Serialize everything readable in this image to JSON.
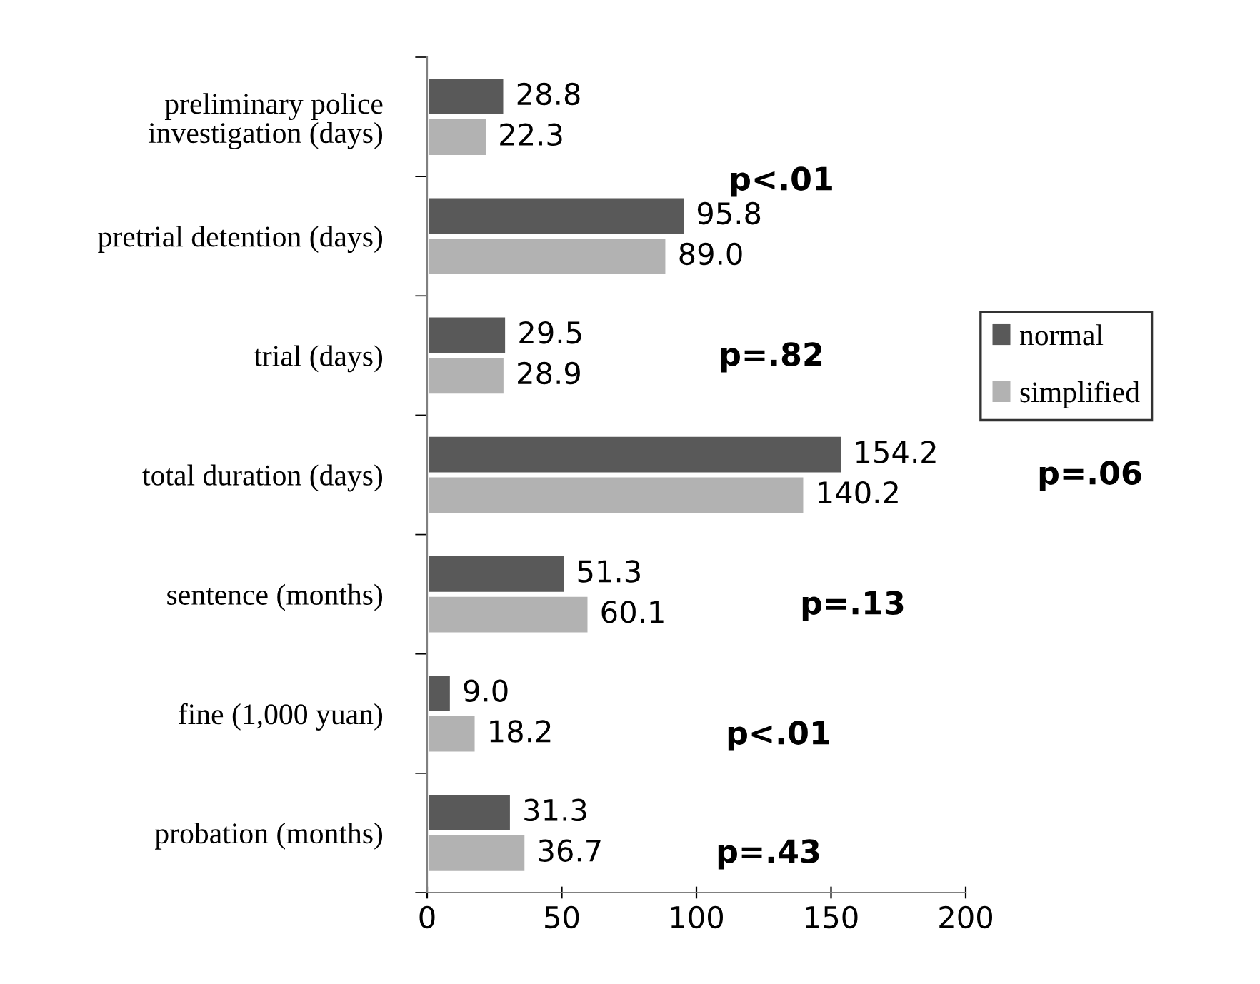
{
  "chart_data": {
    "type": "bar",
    "orientation": "horizontal",
    "categories": [
      "preliminary police\ninvestigation (days)",
      "pretrial detention (days)",
      "trial (days)",
      "total duration (days)",
      "sentence (months)",
      "fine (1,000 yuan)",
      "probation (months)"
    ],
    "series": [
      {
        "name": "normal",
        "color": "#595959",
        "values": [
          28.8,
          95.8,
          29.5,
          154.2,
          51.3,
          9.0,
          31.3
        ],
        "value_labels": [
          "28.8",
          "95.8",
          "29.5",
          "154.2",
          "51.3",
          "9.0",
          "31.3"
        ]
      },
      {
        "name": "simplified",
        "color": "#b2b2b2",
        "values": [
          22.3,
          89.0,
          28.9,
          140.2,
          60.1,
          18.2,
          36.7
        ],
        "value_labels": [
          "22.3",
          "89.0",
          "28.9",
          "140.2",
          "60.1",
          "18.2",
          "36.7"
        ]
      }
    ],
    "xlim": [
      0,
      200
    ],
    "xticks": [
      0,
      50,
      100,
      150,
      200
    ],
    "annotations": [
      "p<.01",
      "p=.82",
      "p=.06",
      "p=.13",
      "p<.01",
      "p=.43"
    ],
    "legend": "right",
    "grid": false
  }
}
